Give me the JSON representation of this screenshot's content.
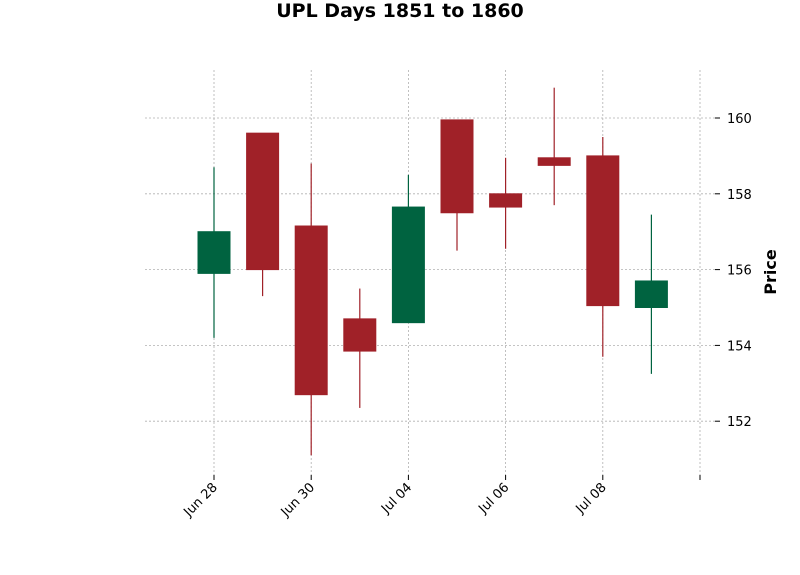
{
  "chart_data": {
    "type": "candlestick",
    "title": "UPL Days 1851 to 1860",
    "ylabel": "Price",
    "ylim": [
      150.6,
      161.3
    ],
    "yticks": [
      152,
      154,
      156,
      158,
      160
    ],
    "grid": true,
    "up_color": "#006340",
    "down_color": "#A02128",
    "xtick_labels": [
      {
        "index": 0,
        "label": "Jun 28"
      },
      {
        "index": 2,
        "label": "Jun 30"
      },
      {
        "index": 4,
        "label": "Jul 04"
      },
      {
        "index": 6,
        "label": "Jul 06"
      },
      {
        "index": 8,
        "label": "Jul 08"
      },
      {
        "index": 10,
        "label": ""
      }
    ],
    "candles": [
      {
        "open": 155.9,
        "high": 158.7,
        "low": 154.2,
        "close": 157.0
      },
      {
        "open": 159.6,
        "high": 159.6,
        "low": 155.3,
        "close": 156.0
      },
      {
        "open": 157.15,
        "high": 158.8,
        "low": 151.1,
        "close": 152.7
      },
      {
        "open": 154.7,
        "high": 155.5,
        "low": 152.35,
        "close": 153.85
      },
      {
        "open": 154.6,
        "high": 158.5,
        "low": 154.6,
        "close": 157.65
      },
      {
        "open": 159.95,
        "high": 159.95,
        "low": 156.5,
        "close": 157.5
      },
      {
        "open": 158.0,
        "high": 158.95,
        "low": 156.55,
        "close": 157.65
      },
      {
        "open": 158.95,
        "high": 160.8,
        "low": 157.7,
        "close": 158.75
      },
      {
        "open": 159.0,
        "high": 159.5,
        "low": 153.7,
        "close": 155.05
      },
      {
        "open": 155.0,
        "high": 157.45,
        "low": 153.25,
        "close": 155.7
      }
    ]
  }
}
